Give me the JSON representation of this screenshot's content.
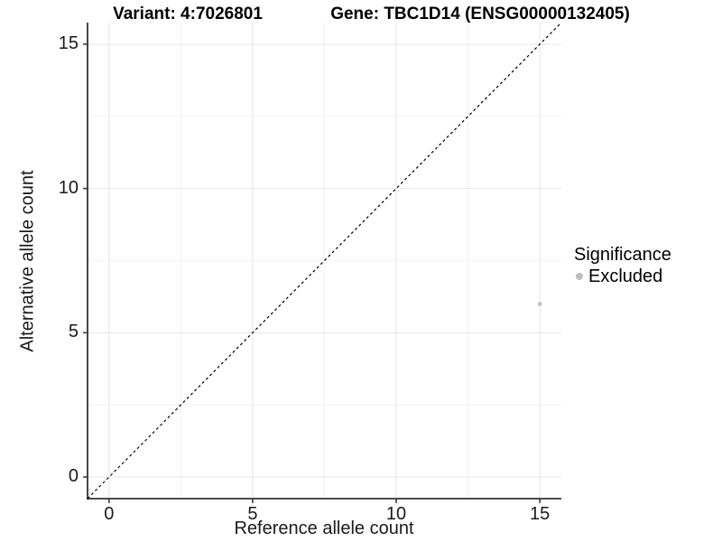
{
  "titles": {
    "variant": "Variant: 4:7026801",
    "gene": "Gene: TBC1D14 (ENSG00000132405)"
  },
  "axes": {
    "x_title": "Reference allele count",
    "y_title": "Alternative allele count"
  },
  "legend": {
    "title": "Significance",
    "items": [
      {
        "label": "Excluded",
        "color": "#bdbdbd"
      }
    ]
  },
  "colors": {
    "grid_major": "#e4e4e4",
    "grid_minor": "#f2f2f2",
    "axis_line": "#333333",
    "tick_mark": "#333333",
    "point": "#c2c2c2",
    "reference_line": "#000000"
  },
  "chart_data": {
    "type": "scatter",
    "title": "Variant: 4:7026801   Gene: TBC1D14 (ENSG00000132405)",
    "xlabel": "Reference allele count",
    "ylabel": "Alternative allele count",
    "xlim": [
      -0.75,
      15.75
    ],
    "ylim": [
      -0.75,
      15.75
    ],
    "x_ticks": [
      0,
      5,
      10,
      15
    ],
    "y_ticks": [
      0,
      5,
      10,
      15
    ],
    "x_minor_ticks": [
      2.5,
      7.5,
      12.5
    ],
    "y_minor_ticks": [
      2.5,
      7.5,
      12.5
    ],
    "grid": true,
    "legend_position": "right",
    "series": [
      {
        "name": "Excluded",
        "color": "#c2c2c2",
        "points": [
          {
            "x": 15,
            "y": 6
          }
        ]
      }
    ],
    "reference_line": {
      "type": "identity y=x",
      "style": "dashed",
      "color": "#000000"
    }
  }
}
